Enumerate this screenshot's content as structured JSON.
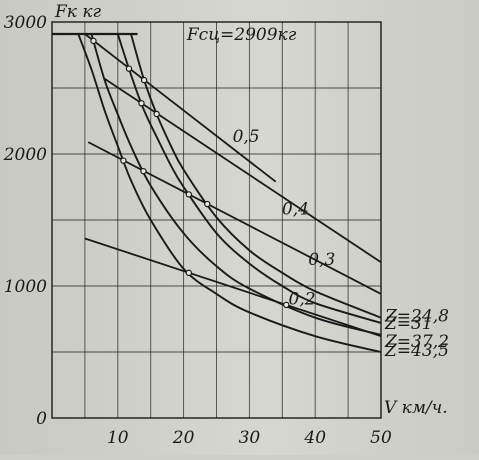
{
  "chart_data": {
    "type": "line",
    "title": "",
    "ylabel": "Fк кг",
    "xlabel": "V км/ч.",
    "xlim": [
      0,
      50
    ],
    "ylim": [
      0,
      3000
    ],
    "x_ticks": [
      10,
      20,
      30,
      40,
      50
    ],
    "x_tick_labels": [
      "10",
      "20",
      "30",
      "40",
      "50"
    ],
    "y_ticks": [
      0,
      1000,
      2000,
      3000
    ],
    "y_tick_labels": [
      "0",
      "1000",
      "2000",
      "3000"
    ],
    "grid": true,
    "legend": "none",
    "adhesion_limit": {
      "label": "Fсц=2909кг",
      "value": 2909
    },
    "series": [
      {
        "name": "Z=43,5",
        "x": [
          4,
          6,
          8,
          10,
          12,
          15,
          20,
          25,
          30,
          40,
          50
        ],
        "y": [
          2909,
          2640,
          2330,
          2060,
          1800,
          1500,
          1130,
          940,
          800,
          620,
          500
        ]
      },
      {
        "name": "Z=37,2",
        "x": [
          6,
          8,
          10,
          12,
          15,
          20,
          25,
          30,
          40,
          50
        ],
        "y": [
          2909,
          2560,
          2300,
          2060,
          1760,
          1400,
          1150,
          980,
          760,
          630
        ]
      },
      {
        "name": "Z=31",
        "x": [
          10,
          12,
          14,
          16,
          18,
          20,
          25,
          30,
          35,
          40,
          50
        ],
        "y": [
          2909,
          2600,
          2330,
          2120,
          1920,
          1750,
          1400,
          1170,
          1000,
          870,
          720
        ]
      },
      {
        "name": "Z=24,8",
        "x": [
          12,
          14,
          16,
          18,
          20,
          25,
          30,
          35,
          40,
          50
        ],
        "y": [
          2909,
          2560,
          2290,
          2070,
          1880,
          1520,
          1270,
          1100,
          960,
          760
        ]
      }
    ],
    "lines": [
      {
        "name": "0,5",
        "x": [
          5,
          34
        ],
        "y": [
          2909,
          1790
        ]
      },
      {
        "name": "0,4",
        "x": [
          8,
          50
        ],
        "y": [
          2570,
          1180
        ]
      },
      {
        "name": "0,3",
        "x": [
          5.5,
          50
        ],
        "y": [
          2090,
          940
        ]
      },
      {
        "name": "0,2",
        "x": [
          5,
          50
        ],
        "y": [
          1360,
          620
        ]
      }
    ],
    "annotations": [
      "0,5",
      "0,4",
      "0,3",
      "0,2",
      "Z=43,5",
      "Z=37,2",
      "Z=31",
      "Z=24,8"
    ],
    "colors": {
      "ink": "#1a1a1a",
      "background": "#d2d2cc"
    }
  }
}
